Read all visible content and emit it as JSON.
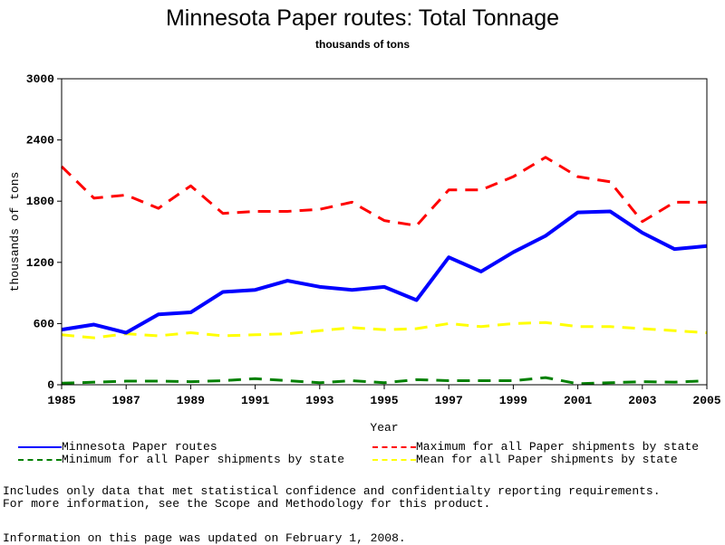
{
  "chart_data": {
    "type": "line",
    "title": "Minnesota Paper routes: Total Tonnage",
    "subtitle": "thousands of tons",
    "xlabel": "Year",
    "ylabel": "thousands of tons",
    "xlim": [
      1985,
      2005
    ],
    "ylim": [
      0,
      3000
    ],
    "grid": false,
    "legend_position": "bottom",
    "x_ticks": [
      "1985",
      "1987",
      "1989",
      "1991",
      "1993",
      "1995",
      "1997",
      "1999",
      "2001",
      "2003",
      "2005"
    ],
    "y_ticks": [
      "0",
      "600",
      "1200",
      "1800",
      "2400",
      "3000"
    ],
    "x": [
      1985,
      1986,
      1987,
      1988,
      1989,
      1990,
      1991,
      1992,
      1993,
      1994,
      1995,
      1996,
      1997,
      1998,
      1999,
      2000,
      2001,
      2002,
      2003,
      2004,
      2005
    ],
    "series": [
      {
        "name": "Minnesota Paper routes",
        "color": "#0000ff",
        "style": "solid",
        "values": [
          540,
          590,
          510,
          690,
          710,
          910,
          930,
          1020,
          960,
          930,
          960,
          830,
          1250,
          1110,
          1300,
          1460,
          1690,
          1700,
          1490,
          1330,
          1360
        ]
      },
      {
        "name": "Maximum for all Paper shipments by state",
        "color": "#ff0000",
        "style": "dashed",
        "values": [
          2140,
          1830,
          1860,
          1730,
          1950,
          1680,
          1700,
          1700,
          1720,
          1790,
          1610,
          1560,
          1910,
          1910,
          2040,
          2230,
          2040,
          1990,
          1600,
          1790,
          1790
        ]
      },
      {
        "name": "Minimum for all Paper shipments by state",
        "color": "#008000",
        "style": "dashed",
        "values": [
          15,
          25,
          35,
          35,
          30,
          40,
          60,
          40,
          20,
          40,
          20,
          50,
          40,
          40,
          40,
          70,
          10,
          20,
          30,
          25,
          40
        ]
      },
      {
        "name": "Mean for all Paper shipments by state",
        "color": "#ffff00",
        "style": "dashed",
        "values": [
          490,
          460,
          500,
          480,
          510,
          480,
          490,
          500,
          530,
          560,
          540,
          550,
          600,
          570,
          600,
          610,
          570,
          570,
          550,
          530,
          510
        ]
      }
    ]
  },
  "notes": {
    "line1": "Includes only data that met statistical confidence and confidentialty reporting requirements.",
    "line2": "For more information, see the Scope and Methodology for this product.",
    "updated": "Information on this page was updated on February 1, 2008."
  }
}
